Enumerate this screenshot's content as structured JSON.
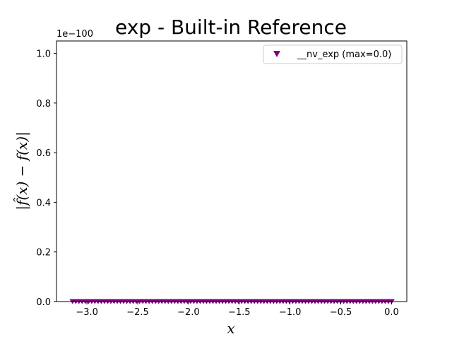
{
  "chart_data": {
    "type": "scatter",
    "title": "exp - Built-in Reference",
    "xlabel": "x",
    "ylabel": "|f̂(x) − f(x)|",
    "xlim": [
      -3.3,
      0.15
    ],
    "ylim": [
      0,
      1.05
    ],
    "y_offset_text": "1e−100",
    "x_ticks": [
      -3.0,
      -2.5,
      -2.0,
      -1.5,
      -1.0,
      -0.5,
      0.0
    ],
    "x_tick_labels": [
      "−3.0",
      "−2.5",
      "−2.0",
      "−1.5",
      "−1.0",
      "−0.5",
      "0.0"
    ],
    "y_ticks": [
      0.0,
      0.2,
      0.4,
      0.6,
      0.8,
      1.0
    ],
    "y_tick_labels": [
      "0.0",
      "0.2",
      "0.4",
      "0.6",
      "0.8",
      "1.0"
    ],
    "grid": false,
    "legend_position": "top-right",
    "series": [
      {
        "name": "__nv_exp (max=0.0)",
        "marker": "triangle-down",
        "color": "#800080",
        "x_range": [
          -3.14159,
          0.0
        ],
        "point_count": 101,
        "y_value": 0.0
      }
    ]
  }
}
